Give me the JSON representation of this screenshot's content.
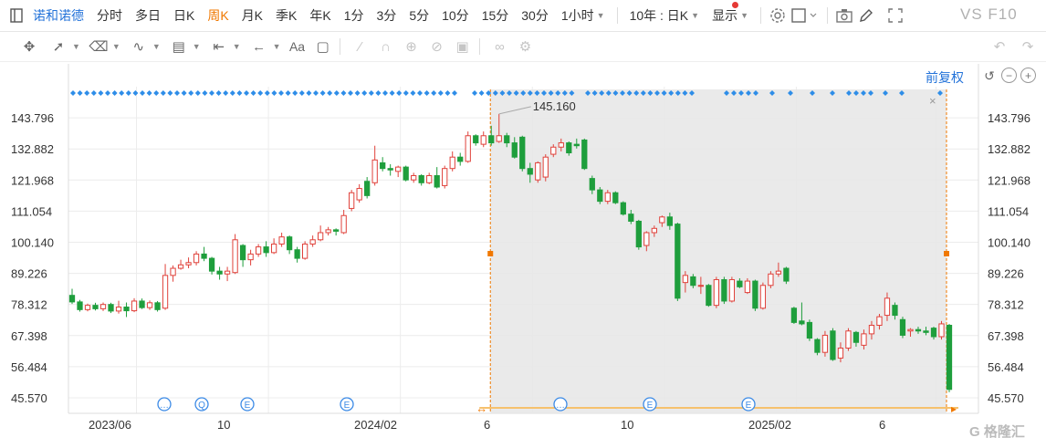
{
  "toolbar": {
    "stock_name": "诺和诺德",
    "periods": [
      {
        "label": "分时",
        "active": false
      },
      {
        "label": "多日",
        "active": false
      },
      {
        "label": "日K",
        "active": false
      },
      {
        "label": "周K",
        "active": true
      },
      {
        "label": "月K",
        "active": false
      },
      {
        "label": "季K",
        "active": false
      },
      {
        "label": "年K",
        "active": false
      },
      {
        "label": "1分",
        "active": false
      },
      {
        "label": "3分",
        "active": false
      },
      {
        "label": "5分",
        "active": false
      },
      {
        "label": "10分",
        "active": false
      },
      {
        "label": "15分",
        "active": false
      },
      {
        "label": "30分",
        "active": false
      }
    ],
    "hour_select": "1小时",
    "range_select": "10年 : 日K",
    "display_label": "显示",
    "f10_label": "VS F10"
  },
  "drawing_tools": [
    "move-icon",
    "line-icon",
    "channel-icon",
    "wave-icon",
    "fib-icon",
    "measure-icon",
    "arrow-icon",
    "text-icon",
    "comment-icon",
    "pen-icon",
    "magnet-icon",
    "lock-icon",
    "hide-icon",
    "trash-icon",
    "link-icon",
    "settings-icon"
  ],
  "adjust_label": "前复权",
  "accent_colors": {
    "up": "#e0413a",
    "down": "#1e9e3c",
    "brand": "#2272d9",
    "selection": "#f07800"
  },
  "chart_data": {
    "type": "candlestick",
    "y_ticks": [
      "143.796",
      "132.882",
      "121.968",
      "111.054",
      "100.140",
      "89.226",
      "78.312",
      "67.398",
      "56.484",
      "45.570"
    ],
    "ylim": [
      40.113,
      154.709
    ],
    "x_labels": [
      "2023/06",
      "10",
      "2024/02",
      "6",
      "10",
      "2025/02",
      "6"
    ],
    "max_label": "145.160",
    "grid": true,
    "selection_start_index": 54,
    "event_markers": [
      "…",
      "Q",
      "E",
      "E",
      "…",
      "E",
      "E"
    ],
    "candles": [
      [
        81.5,
        79.2,
        83.8,
        78.5
      ],
      [
        79.2,
        76.5,
        79.9,
        75.8
      ],
      [
        76.5,
        78.0,
        78.6,
        75.9
      ],
      [
        78.0,
        76.8,
        78.9,
        76.2
      ],
      [
        76.8,
        78.3,
        79.0,
        76.0
      ],
      [
        78.3,
        76.0,
        78.9,
        75.3
      ],
      [
        76.0,
        77.4,
        79.6,
        75.1
      ],
      [
        77.4,
        76.1,
        79.0,
        73.9
      ],
      [
        76.1,
        79.5,
        80.5,
        75.6
      ],
      [
        79.5,
        77.2,
        80.4,
        76.7
      ],
      [
        77.2,
        78.9,
        79.7,
        76.4
      ],
      [
        78.9,
        76.5,
        79.5,
        75.8
      ],
      [
        77.0,
        88.5,
        92.5,
        76.4
      ],
      [
        88.5,
        91.0,
        92.0,
        86.3
      ],
      [
        91.0,
        92.2,
        94.0,
        90.5
      ],
      [
        92.2,
        93.0,
        94.8,
        91.0
      ],
      [
        93.0,
        96.0,
        97.0,
        92.0
      ],
      [
        96.0,
        94.5,
        98.5,
        93.5
      ],
      [
        94.5,
        90.0,
        95.0,
        88.8
      ],
      [
        90.0,
        89.0,
        91.5,
        87.0
      ],
      [
        89.0,
        90.0,
        91.5,
        86.5
      ],
      [
        89.5,
        101.0,
        103.0,
        89.0
      ],
      [
        99.0,
        94.0,
        99.5,
        91.5
      ],
      [
        94.0,
        96.0,
        97.5,
        92.0
      ],
      [
        96.0,
        98.5,
        99.5,
        95.0
      ],
      [
        98.5,
        96.5,
        100.5,
        95.0
      ],
      [
        96.5,
        99.5,
        101.5,
        96.0
      ],
      [
        99.5,
        102.0,
        103.5,
        98.5
      ],
      [
        102.0,
        97.5,
        102.5,
        96.0
      ],
      [
        97.5,
        94.5,
        98.5,
        93.0
      ],
      [
        94.5,
        99.5,
        100.5,
        94.0
      ],
      [
        99.5,
        101.0,
        102.5,
        98.5
      ],
      [
        101.0,
        103.5,
        106.0,
        100.5
      ],
      [
        103.5,
        104.5,
        105.5,
        102.5
      ],
      [
        104.5,
        104.0,
        105.0,
        102.5
      ],
      [
        103.5,
        109.5,
        111.5,
        103.0
      ],
      [
        112.0,
        117.5,
        118.5,
        111.0
      ],
      [
        115.0,
        119.0,
        120.5,
        114.0
      ],
      [
        121.5,
        116.5,
        123.0,
        115.5
      ],
      [
        121.0,
        129.0,
        134.0,
        120.0
      ],
      [
        128.0,
        126.0,
        130.0,
        125.0
      ],
      [
        126.0,
        125.5,
        127.5,
        123.5
      ],
      [
        125.0,
        126.5,
        127.0,
        123.0
      ],
      [
        126.5,
        122.0,
        127.0,
        121.5
      ],
      [
        122.0,
        123.5,
        124.5,
        121.0
      ],
      [
        123.5,
        121.0,
        124.0,
        120.0
      ],
      [
        121.0,
        123.5,
        124.5,
        120.5
      ],
      [
        123.5,
        119.5,
        126.5,
        119.0
      ],
      [
        120.0,
        126.0,
        127.0,
        119.0
      ],
      [
        126.0,
        130.0,
        132.0,
        125.0
      ],
      [
        130.0,
        128.5,
        131.5,
        127.0
      ],
      [
        128.5,
        137.5,
        139.0,
        128.0
      ],
      [
        137.5,
        135.0,
        138.0,
        134.0
      ],
      [
        134.5,
        137.5,
        139.0,
        133.5
      ],
      [
        137.5,
        135.0,
        141.0,
        134.0
      ],
      [
        135.5,
        137.5,
        145.16,
        135.0
      ],
      [
        137.5,
        135.0,
        138.5,
        133.5
      ],
      [
        135.0,
        130.0,
        137.0,
        129.5
      ],
      [
        137.0,
        126.0,
        137.5,
        125.0
      ],
      [
        126.0,
        124.0,
        128.0,
        121.0
      ],
      [
        122.0,
        128.0,
        128.5,
        121.0
      ],
      [
        123.0,
        130.0,
        131.0,
        121.5
      ],
      [
        131.0,
        133.5,
        134.5,
        130.0
      ],
      [
        133.5,
        135.0,
        136.5,
        132.0
      ],
      [
        135.0,
        131.5,
        135.5,
        130.5
      ],
      [
        134.5,
        134.0,
        136.5,
        133.0
      ],
      [
        136.0,
        126.0,
        136.5,
        125.5
      ],
      [
        122.5,
        118.5,
        123.5,
        117.0
      ],
      [
        118.5,
        114.5,
        119.5,
        113.5
      ],
      [
        114.5,
        117.5,
        118.5,
        113.5
      ],
      [
        117.5,
        114.0,
        118.0,
        113.5
      ],
      [
        114.0,
        110.0,
        114.5,
        109.5
      ],
      [
        110.0,
        107.5,
        111.5,
        106.5
      ],
      [
        107.5,
        98.5,
        108.0,
        97.5
      ],
      [
        99.0,
        103.5,
        104.0,
        97.0
      ],
      [
        103.5,
        105.0,
        106.0,
        102.0
      ],
      [
        107.0,
        109.0,
        109.5,
        105.5
      ],
      [
        109.0,
        106.0,
        110.5,
        104.5
      ],
      [
        106.5,
        80.5,
        107.0,
        79.5
      ],
      [
        86.0,
        88.5,
        90.0,
        82.5
      ],
      [
        88.0,
        85.0,
        89.0,
        84.0
      ],
      [
        85.0,
        85.0,
        88.0,
        82.0
      ],
      [
        85.0,
        78.0,
        85.5,
        77.5
      ],
      [
        78.0,
        87.0,
        88.0,
        77.0
      ],
      [
        87.0,
        79.5,
        88.0,
        78.5
      ],
      [
        79.5,
        87.0,
        88.0,
        79.0
      ],
      [
        86.5,
        84.5,
        87.5,
        84.0
      ],
      [
        82.5,
        86.5,
        87.5,
        82.0
      ],
      [
        86.5,
        77.0,
        87.0,
        76.0
      ],
      [
        77.0,
        85.0,
        86.0,
        76.5
      ],
      [
        85.0,
        89.0,
        90.0,
        84.0
      ],
      [
        89.0,
        90.0,
        93.0,
        88.0
      ],
      [
        91.0,
        86.5,
        91.5,
        85.5
      ],
      [
        77.0,
        72.0,
        77.5,
        71.5
      ],
      [
        72.5,
        71.5,
        79.0,
        71.0
      ],
      [
        72.0,
        66.5,
        73.0,
        65.5
      ],
      [
        66.0,
        61.5,
        66.5,
        60.5
      ],
      [
        61.5,
        67.5,
        69.0,
        60.0
      ],
      [
        69.0,
        59.0,
        70.0,
        58.5
      ],
      [
        59.5,
        63.0,
        65.0,
        58.0
      ],
      [
        63.0,
        69.0,
        70.0,
        62.0
      ],
      [
        68.5,
        65.0,
        69.0,
        63.5
      ],
      [
        64.0,
        68.0,
        69.5,
        62.5
      ],
      [
        68.0,
        71.0,
        72.5,
        66.0
      ],
      [
        71.0,
        74.0,
        75.0,
        69.5
      ],
      [
        74.5,
        80.5,
        82.5,
        72.5
      ],
      [
        78.0,
        74.5,
        79.0,
        73.0
      ],
      [
        73.0,
        67.5,
        74.0,
        66.5
      ],
      [
        69.0,
        69.5,
        70.0,
        67.0
      ],
      [
        69.5,
        69.0,
        70.5,
        68.0
      ],
      [
        69.0,
        68.5,
        70.5,
        67.5
      ],
      [
        70.0,
        67.0,
        70.5,
        66.0
      ],
      [
        67.0,
        71.5,
        72.5,
        66.0
      ],
      [
        71.0,
        48.5,
        71.5,
        47.5
      ]
    ]
  }
}
